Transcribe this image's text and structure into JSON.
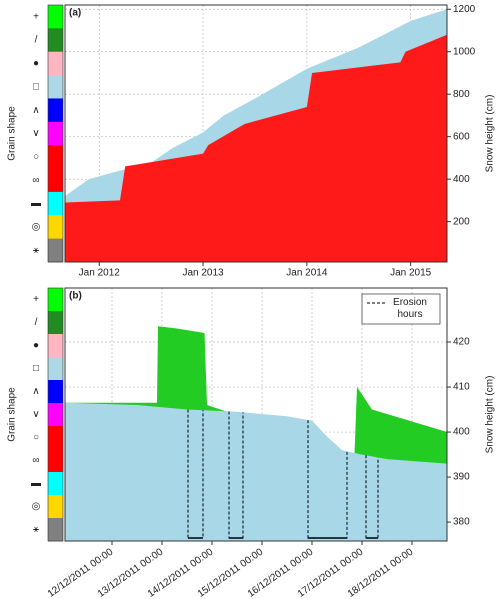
{
  "chart_data": [
    {
      "type": "area",
      "label": "(a)",
      "ylabel": "Snow height (cm)",
      "grain_label": "Grain shape",
      "xlim": [
        2011.67,
        2015.35
      ],
      "ylim": [
        10,
        1220
      ],
      "xticks": [
        {
          "value": 2012,
          "label": "Jan 2012"
        },
        {
          "value": 2013,
          "label": "Jan 2013"
        },
        {
          "value": 2014,
          "label": "Jan 2014"
        },
        {
          "value": 2015,
          "label": "Jan 2015"
        }
      ],
      "yticks": [
        200,
        400,
        600,
        800,
        1000,
        1200
      ],
      "grid": true,
      "grain_legend": [
        {
          "symbol": "+",
          "color": "#00ff00"
        },
        {
          "symbol": "/",
          "color": "#228b22"
        },
        {
          "symbol": "●",
          "color": "#ffb6c1"
        },
        {
          "symbol": "□",
          "color": "#add8e6"
        },
        {
          "symbol": "∧",
          "color": "#0000ff"
        },
        {
          "symbol": "∨",
          "color": "#ff00ff"
        },
        {
          "symbol": "○",
          "color": "#ff0000"
        },
        {
          "symbol": "∞",
          "color": "#ff0000"
        },
        {
          "symbol": "▬",
          "color": "#00ffff"
        },
        {
          "symbol": "◎",
          "color": "#ffd700"
        },
        {
          "symbol": "⚹",
          "color": "#808080"
        }
      ],
      "series": [
        {
          "color": "#a8d8e8",
          "x": [
            2011.67,
            2011.9,
            2012.2,
            2012.48,
            2012.7,
            2013.0,
            2013.2,
            2013.5,
            2014.0,
            2014.5,
            2015.0,
            2015.35
          ],
          "values": [
            320,
            400,
            440,
            470,
            545,
            620,
            700,
            780,
            920,
            1020,
            1145,
            1200
          ]
        },
        {
          "color": "#ff1a1a",
          "x": [
            2011.67,
            2012.2,
            2012.25,
            2013.0,
            2013.05,
            2013.4,
            2014.0,
            2014.05,
            2014.9,
            2014.95,
            2015.35
          ],
          "values": [
            290,
            300,
            460,
            520,
            560,
            660,
            740,
            900,
            950,
            1000,
            1080
          ]
        }
      ]
    },
    {
      "type": "area",
      "label": "(b)",
      "ylabel": "Snow height (cm)",
      "grain_label": "Grain shape",
      "xlim": [
        11.06,
        18.7
      ],
      "ylim": [
        375.8,
        432
      ],
      "xticks": [
        {
          "value": 12,
          "label": "12/12/2011 00:00"
        },
        {
          "value": 13,
          "label": "13/12/2011 00:00"
        },
        {
          "value": 14,
          "label": "14/12/2011 00:00"
        },
        {
          "value": 15,
          "label": "15/12/2011 00:00"
        },
        {
          "value": 16,
          "label": "16/12/2011 00:00"
        },
        {
          "value": 17,
          "label": "17/12/2011 00:00"
        },
        {
          "value": 18,
          "label": "18/12/2011 00:00"
        }
      ],
      "yticks": [
        380,
        390,
        400,
        410,
        420
      ],
      "grid": true,
      "grain_legend": [
        {
          "symbol": "+",
          "color": "#00ff00"
        },
        {
          "symbol": "/",
          "color": "#228b22"
        },
        {
          "symbol": "●",
          "color": "#ffb6c1"
        },
        {
          "symbol": "□",
          "color": "#add8e6"
        },
        {
          "symbol": "∧",
          "color": "#0000ff"
        },
        {
          "symbol": "∨",
          "color": "#ff00ff"
        },
        {
          "symbol": "○",
          "color": "#ff0000"
        },
        {
          "symbol": "∞",
          "color": "#ff0000"
        },
        {
          "symbol": "▬",
          "color": "#00ffff"
        },
        {
          "symbol": "◎",
          "color": "#ffd700"
        },
        {
          "symbol": "⚹",
          "color": "#808080"
        }
      ],
      "series": [
        {
          "color": "#22cc22",
          "x": [
            11.06,
            12.9,
            12.92,
            13.3,
            13.85,
            13.9,
            16.85,
            16.9,
            17.2,
            17.5,
            18.7
          ],
          "values": [
            406.5,
            406.5,
            423.5,
            423,
            422,
            406,
            395,
            410,
            405,
            404,
            400
          ]
        },
        {
          "color": "#a8d8e8",
          "x": [
            11.06,
            12.5,
            13.5,
            14.5,
            15.5,
            16.0,
            16.3,
            16.6,
            17.0,
            17.5,
            18.7
          ],
          "values": [
            406.5,
            406,
            405,
            404.5,
            403.5,
            402.5,
            399,
            396,
            395,
            394,
            393
          ]
        }
      ],
      "erosion_label": "Erosion hours",
      "erosion": [
        [
          13.52,
          13.82
        ],
        [
          14.34,
          14.62
        ],
        [
          15.92,
          16.7
        ],
        [
          17.08,
          17.32
        ]
      ]
    }
  ]
}
